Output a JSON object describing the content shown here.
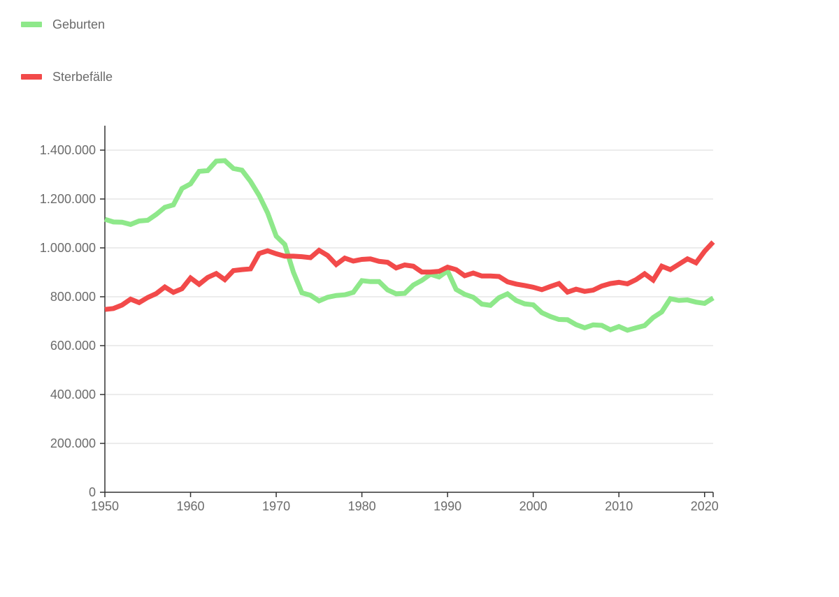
{
  "chart_data": {
    "type": "line",
    "title": "",
    "xlabel": "",
    "ylabel": "",
    "xlim": [
      1950,
      2021
    ],
    "ylim": [
      0,
      1500000
    ],
    "grid": true,
    "legend_position": "top-left",
    "x_ticks": [
      1950,
      1960,
      1970,
      1980,
      1990,
      2000,
      2010,
      2020
    ],
    "y_ticks": [
      0,
      200000,
      400000,
      600000,
      800000,
      1000000,
      1200000,
      1400000
    ],
    "x_tick_labels": [
      "1950",
      "1960",
      "1970",
      "1980",
      "1990",
      "2000",
      "2010",
      "2020"
    ],
    "y_tick_labels": [
      "0",
      "200.000",
      "400.000",
      "600.000",
      "800.000",
      "1.000.000",
      "1.200.000",
      "1.400.000"
    ],
    "x": [
      1950,
      1951,
      1952,
      1953,
      1954,
      1955,
      1956,
      1957,
      1958,
      1959,
      1960,
      1961,
      1962,
      1963,
      1964,
      1965,
      1966,
      1967,
      1968,
      1969,
      1970,
      1971,
      1972,
      1973,
      1974,
      1975,
      1976,
      1977,
      1978,
      1979,
      1980,
      1981,
      1982,
      1983,
      1984,
      1985,
      1986,
      1987,
      1988,
      1989,
      1990,
      1991,
      1992,
      1993,
      1994,
      1995,
      1996,
      1997,
      1998,
      1999,
      2000,
      2001,
      2002,
      2003,
      2004,
      2005,
      2006,
      2007,
      2008,
      2009,
      2010,
      2011,
      2012,
      2013,
      2014,
      2015,
      2016,
      2017,
      2018,
      2019,
      2020,
      2021
    ],
    "series": [
      {
        "name": "Geburten",
        "color": "#8ee88a",
        "values": [
          1117000,
          1106000,
          1105000,
          1096000,
          1110000,
          1113000,
          1137000,
          1166000,
          1176000,
          1243000,
          1262000,
          1313000,
          1316000,
          1355000,
          1357000,
          1325000,
          1318000,
          1272000,
          1215000,
          1143000,
          1048000,
          1014000,
          901000,
          816000,
          806000,
          783000,
          798000,
          805000,
          808000,
          818000,
          866000,
          862000,
          862000,
          828000,
          812000,
          814000,
          848000,
          867000,
          892000,
          881000,
          906000,
          830000,
          810000,
          798000,
          770000,
          765000,
          796000,
          812000,
          785000,
          771000,
          767000,
          735000,
          719000,
          707000,
          706000,
          686000,
          673000,
          685000,
          683000,
          665000,
          678000,
          663000,
          673000,
          682000,
          715000,
          738000,
          792000,
          785000,
          787000,
          778000,
          773000,
          795000
        ]
      },
      {
        "name": "Sterbefälle",
        "color": "#f24a4a",
        "values": [
          748000,
          752000,
          766000,
          790000,
          776000,
          797000,
          813000,
          840000,
          818000,
          833000,
          877000,
          851000,
          879000,
          895000,
          870000,
          907000,
          911000,
          914000,
          977000,
          988000,
          976000,
          966000,
          966000,
          964000,
          960000,
          990000,
          969000,
          932000,
          958000,
          946000,
          953000,
          955000,
          945000,
          941000,
          918000,
          930000,
          925000,
          901000,
          901000,
          904000,
          921000,
          911000,
          886000,
          897000,
          885000,
          885000,
          883000,
          861000,
          852000,
          846000,
          839000,
          829000,
          842000,
          854000,
          819000,
          831000,
          822000,
          827000,
          844000,
          854000,
          859000,
          853000,
          870000,
          894000,
          868000,
          925000,
          911000,
          933000,
          955000,
          939000,
          986000,
          1024000
        ]
      }
    ]
  }
}
